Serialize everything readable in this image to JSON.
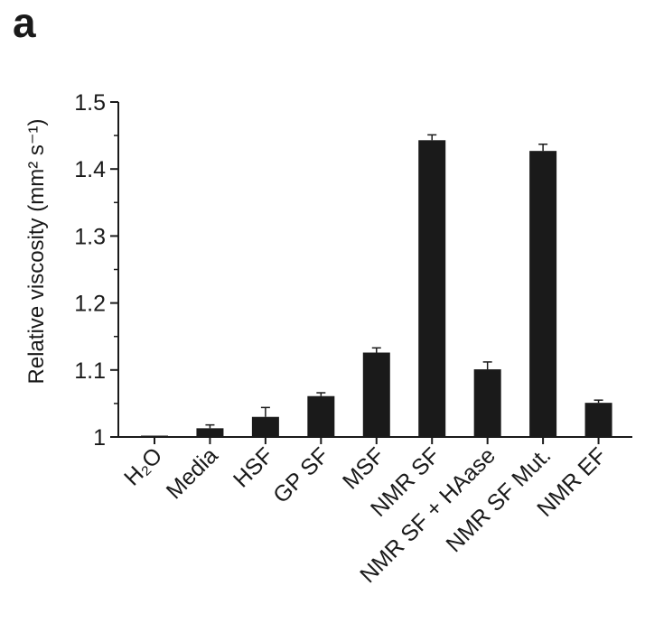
{
  "panel_label": "a",
  "chart_data": {
    "type": "bar",
    "title": "",
    "xlabel": "",
    "ylabel": "Relative viscosity (mm² s⁻¹)",
    "ylim": [
      1.0,
      1.5
    ],
    "yticks": [
      1,
      1.1,
      1.2,
      1.3,
      1.4,
      1.5
    ],
    "ytick_labels": [
      "1",
      "1.1",
      "1.2",
      "1.3",
      "1.4",
      "1.5"
    ],
    "categories": [
      "H₂O",
      "Media",
      "HSF",
      "GP SF",
      "MSF",
      "NMR SF",
      "NMR SF + HAase",
      "NMR SF Mut.",
      "NMR EF"
    ],
    "values": [
      1.001,
      1.013,
      1.03,
      1.061,
      1.126,
      1.443,
      1.101,
      1.427,
      1.051
    ],
    "errors": [
      0.0,
      0.005,
      0.014,
      0.005,
      0.007,
      0.008,
      0.011,
      0.01,
      0.004
    ],
    "bar_color": "#1a1a1a",
    "grid": false,
    "legend": "none"
  }
}
